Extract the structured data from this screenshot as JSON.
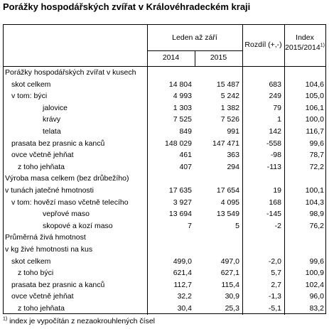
{
  "title": "Porážky hospodářských zvířat v Královéhradeckém kraji",
  "header": {
    "period": "Leden až září",
    "year1": "2014",
    "year2": "2015",
    "diff": "Rozdíl (+,-)",
    "index_line1": "Index",
    "index_line2": "2015/2014",
    "index_sup": "1)"
  },
  "rows": [
    {
      "label": "Porážky hospodářských zvířat v kusech",
      "indent": 0,
      "v2014": "",
      "v2015": "",
      "diff": "",
      "index": ""
    },
    {
      "label": "skot celkem",
      "indent": 1,
      "v2014": "14 804",
      "v2015": "15 487",
      "diff": "683",
      "index": "104,6"
    },
    {
      "label": "v tom: býci",
      "indent": 1,
      "v2014": "4 993",
      "v2015": "5 242",
      "diff": "249",
      "index": "105,0"
    },
    {
      "label": "jalovice",
      "indent": 3,
      "v2014": "1 303",
      "v2015": "1 382",
      "diff": "79",
      "index": "106,1"
    },
    {
      "label": "krávy",
      "indent": 3,
      "v2014": "7 525",
      "v2015": "7 526",
      "diff": "1",
      "index": "100,0"
    },
    {
      "label": "telata",
      "indent": 3,
      "v2014": "849",
      "v2015": "991",
      "diff": "142",
      "index": "116,7"
    },
    {
      "label": "prasata bez prasnic a kanců",
      "indent": 1,
      "v2014": "148 029",
      "v2015": "147 471",
      "diff": "-558",
      "index": "99,6"
    },
    {
      "label": "ovce včetně jehňat",
      "indent": 1,
      "v2014": "461",
      "v2015": "363",
      "diff": "-98",
      "index": "78,7"
    },
    {
      "label": "z toho jehňata",
      "indent": 2,
      "v2014": "407",
      "v2015": "294",
      "diff": "-113",
      "index": "72,2"
    },
    {
      "label": "Výroba masa celkem (bez drůbežího)",
      "indent": 0,
      "v2014": "",
      "v2015": "",
      "diff": "",
      "index": ""
    },
    {
      "label": "v tunách jatečné hmotnosti",
      "indent": 0,
      "v2014": "17 635",
      "v2015": "17 654",
      "diff": "19",
      "index": "100,1"
    },
    {
      "label": "v tom: hovězí maso včetně telecího",
      "indent": 1,
      "v2014": "3 927",
      "v2015": "4 095",
      "diff": "168",
      "index": "104,3"
    },
    {
      "label": "vepřové maso",
      "indent": 3,
      "v2014": "13 694",
      "v2015": "13 549",
      "diff": "-145",
      "index": "98,9"
    },
    {
      "label": "skopové a kozí maso",
      "indent": 3,
      "v2014": "7",
      "v2015": "5",
      "diff": "-2",
      "index": "76,2"
    },
    {
      "label": "Průměrná živá hmotnost",
      "indent": 0,
      "v2014": "",
      "v2015": "",
      "diff": "",
      "index": ""
    },
    {
      "label": "v kg živé hmotnosti na kus",
      "indent": 0,
      "v2014": "",
      "v2015": "",
      "diff": "",
      "index": ""
    },
    {
      "label": "skot celkem",
      "indent": 1,
      "v2014": "499,0",
      "v2015": "497,0",
      "diff": "-2,0",
      "index": "99,6"
    },
    {
      "label": "z toho býci",
      "indent": 2,
      "v2014": "621,4",
      "v2015": "627,1",
      "diff": "5,7",
      "index": "100,9"
    },
    {
      "label": "prasata bez prasnic a kanců",
      "indent": 1,
      "v2014": "112,7",
      "v2015": "115,4",
      "diff": "2,7",
      "index": "102,4"
    },
    {
      "label": "ovce včetně jehňat",
      "indent": 1,
      "v2014": "32,2",
      "v2015": "30,9",
      "diff": "-1,3",
      "index": "96,0"
    },
    {
      "label": "z toho jehňata",
      "indent": 2,
      "v2014": "30,4",
      "v2015": "25,3",
      "diff": "-5,1",
      "index": "83,2"
    }
  ],
  "footnote": {
    "sup": "1)",
    "text": " index je vypočítán z nezaokrouhlených čísel"
  }
}
